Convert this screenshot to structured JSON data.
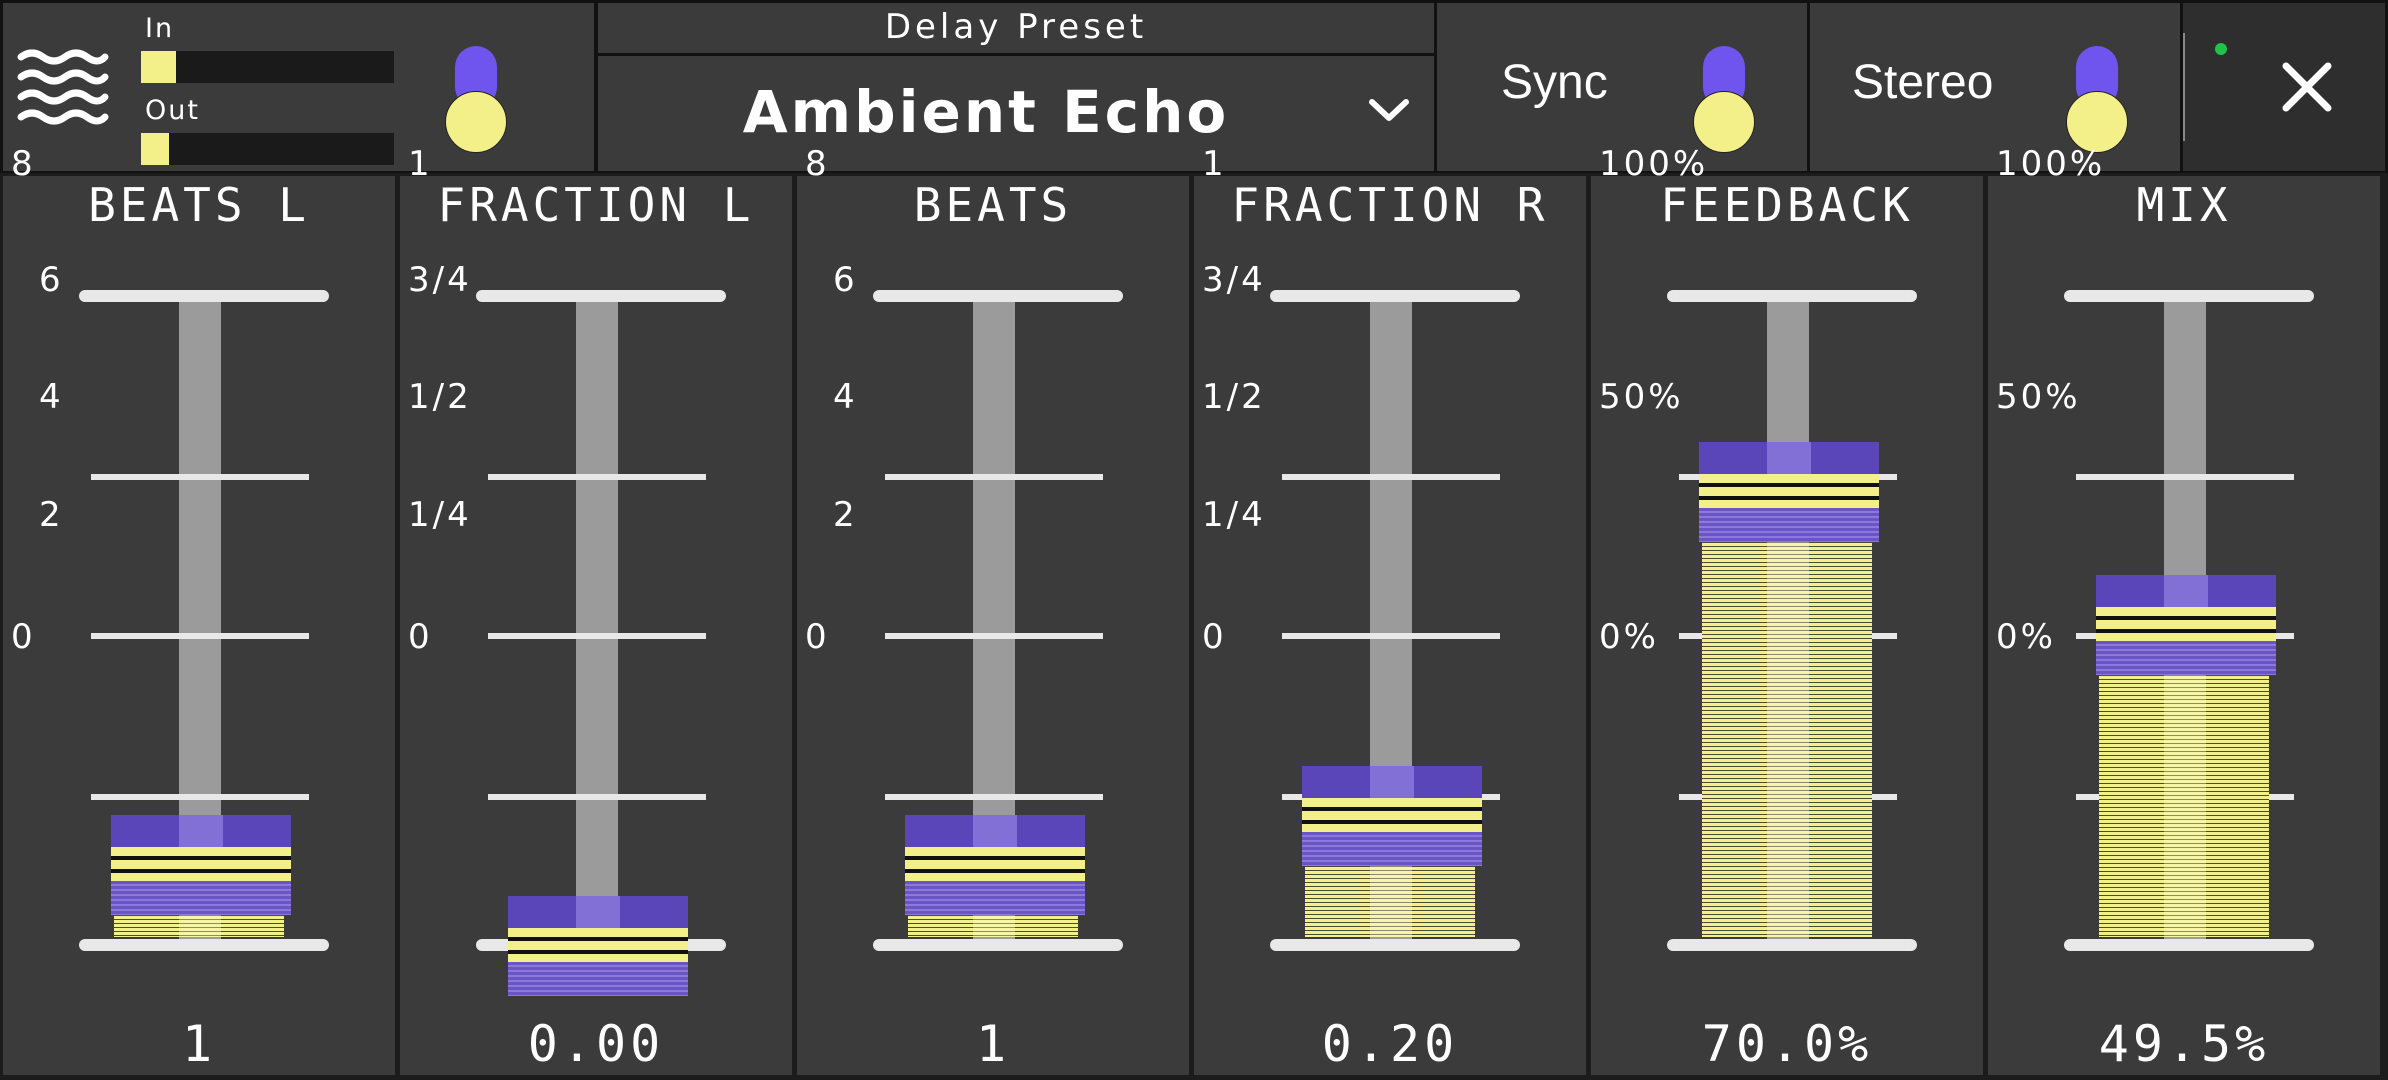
{
  "header": {
    "meters": [
      {
        "label": "In",
        "level": 0.14
      },
      {
        "label": "Out",
        "level": 0.11
      }
    ],
    "preset": {
      "label": "Delay Preset",
      "value": "Ambient Echo"
    },
    "sync_label": "Sync",
    "stereo_label": "Stereo",
    "status_color": "#1fc24a"
  },
  "colors": {
    "accent": "#f3f08a",
    "handle": "#5a46b8",
    "toggle": "#6f55ee",
    "panel": "#3b3b3b"
  },
  "faders": [
    {
      "title": "BEATS L",
      "ticks": [
        "8",
        "6",
        "4",
        "2",
        "0"
      ],
      "value": "1",
      "level": 0.125
    },
    {
      "title": "FRACTION L",
      "ticks": [
        "1",
        "3/4",
        "1/2",
        "1/4",
        "0"
      ],
      "value": "0.00",
      "level": 0.0
    },
    {
      "title": "BEATS",
      "ticks": [
        "8",
        "6",
        "4",
        "2",
        "0"
      ],
      "value": "1",
      "level": 0.125
    },
    {
      "title": "FRACTION R",
      "ticks": [
        "1",
        "3/4",
        "1/2",
        "1/4",
        "0"
      ],
      "value": "0.20",
      "level": 0.2
    },
    {
      "title": "FEEDBACK",
      "ticks": [
        "100%",
        "",
        "50%",
        "",
        "0%"
      ],
      "value": "70.0%",
      "level": 0.7
    },
    {
      "title": "MIX",
      "ticks": [
        "100%",
        "",
        "50%",
        "",
        "0%"
      ],
      "value": "49.5%",
      "level": 0.495
    }
  ]
}
